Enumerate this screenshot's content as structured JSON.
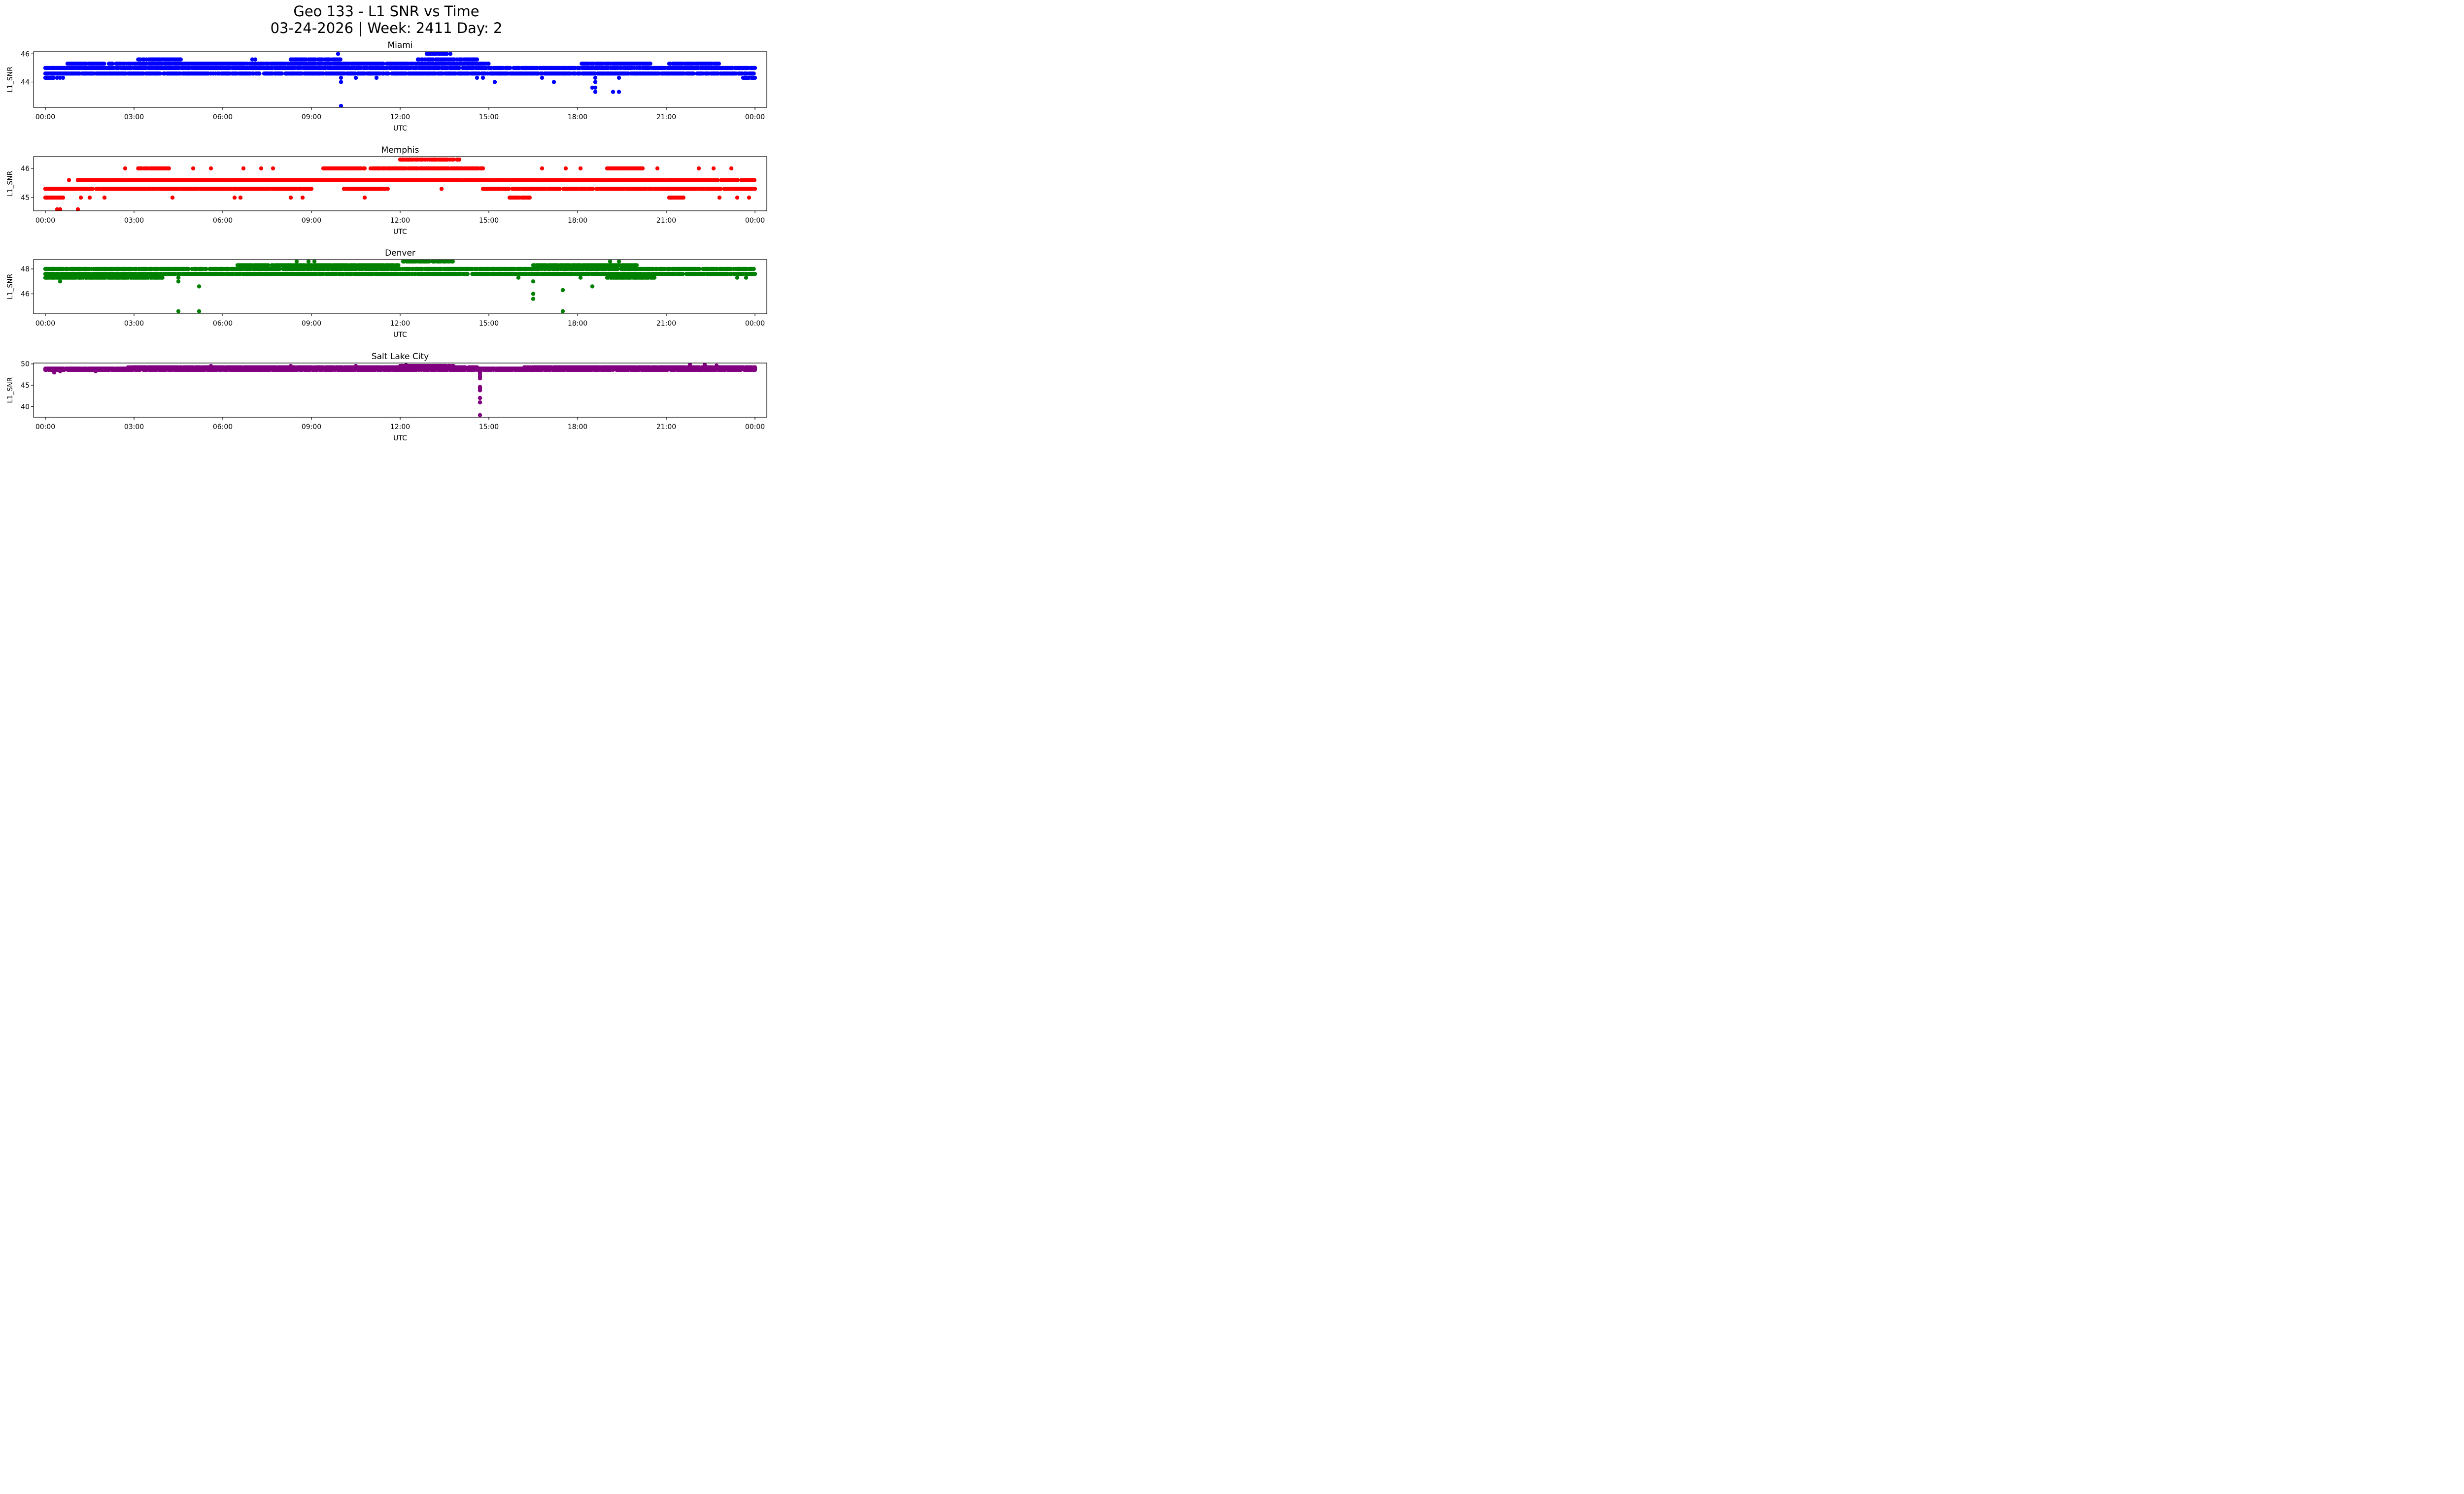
{
  "chart_data": {
    "type": "scatter",
    "title_line1": "Geo 133 - L1 SNR vs Time",
    "title_line2": "03-24-2026 | Week: 2411 Day: 2",
    "subplots": [
      {
        "title": "Miami",
        "color": "#0000ff",
        "xlabel": "UTC",
        "ylabel": "L1_SNR",
        "xlim": [
          -0.4,
          24.4
        ],
        "ylim": [
          42.2,
          46.15
        ],
        "yticks": [
          44,
          46
        ],
        "xticks": [
          0,
          3,
          6,
          9,
          12,
          15,
          18,
          21,
          24
        ],
        "xtick_labels": [
          "00:00",
          "03:00",
          "06:00",
          "09:00",
          "12:00",
          "15:00",
          "18:00",
          "21:00",
          "00:00"
        ],
        "bands": [
          {
            "y": 45.0,
            "from": 0.0,
            "to": 24.0
          },
          {
            "y": 44.6,
            "from": 0.0,
            "to": 24.0
          },
          {
            "y": 45.3,
            "from": 0.75,
            "to": 15.0
          },
          {
            "y": 45.3,
            "from": 18.1,
            "to": 20.5
          },
          {
            "y": 45.3,
            "from": 21.1,
            "to": 22.8
          },
          {
            "y": 45.6,
            "from": 3.1,
            "to": 4.6
          },
          {
            "y": 45.6,
            "from": 8.3,
            "to": 10.0
          },
          {
            "y": 45.6,
            "from": 12.6,
            "to": 14.6
          },
          {
            "y": 46.0,
            "from": 12.9,
            "to": 13.6
          },
          {
            "y": 44.3,
            "from": 0.0,
            "to": 0.3
          },
          {
            "y": 44.3,
            "from": 23.6,
            "to": 24.0
          }
        ],
        "outliers": [
          [
            9.9,
            46.0
          ],
          [
            13.7,
            46.0
          ],
          [
            10.0,
            44.3
          ],
          [
            10.0,
            44.0
          ],
          [
            10.0,
            42.3
          ],
          [
            10.5,
            44.3
          ],
          [
            11.2,
            44.3
          ],
          [
            14.6,
            44.3
          ],
          [
            14.8,
            44.3
          ],
          [
            15.2,
            44.0
          ],
          [
            16.8,
            44.3
          ],
          [
            17.2,
            44.0
          ],
          [
            18.5,
            43.6
          ],
          [
            18.6,
            43.6
          ],
          [
            18.6,
            44.3
          ],
          [
            18.6,
            44.0
          ],
          [
            18.6,
            43.3
          ],
          [
            19.2,
            43.3
          ],
          [
            19.4,
            43.3
          ],
          [
            19.4,
            44.3
          ],
          [
            7.0,
            45.6
          ],
          [
            7.1,
            45.6
          ],
          [
            0.4,
            44.3
          ],
          [
            0.5,
            44.3
          ],
          [
            0.6,
            44.3
          ]
        ]
      },
      {
        "title": "Memphis",
        "color": "#ff0000",
        "xlabel": "UTC",
        "ylabel": "L1_SNR",
        "xlim": [
          -0.4,
          24.4
        ],
        "ylim": [
          44.55,
          46.4
        ],
        "yticks": [
          45,
          46
        ],
        "xticks": [
          0,
          3,
          6,
          9,
          12,
          15,
          18,
          21,
          24
        ],
        "xtick_labels": [
          "00:00",
          "03:00",
          "06:00",
          "09:00",
          "12:00",
          "15:00",
          "18:00",
          "21:00",
          "00:00"
        ],
        "bands": [
          {
            "y": 45.3,
            "from": 0.0,
            "to": 9.0
          },
          {
            "y": 45.3,
            "from": 14.8,
            "to": 24.0
          },
          {
            "y": 45.6,
            "from": 1.1,
            "to": 24.0
          },
          {
            "y": 46.0,
            "from": 3.1,
            "to": 4.2
          },
          {
            "y": 46.0,
            "from": 9.4,
            "to": 10.8
          },
          {
            "y": 46.0,
            "from": 11.0,
            "to": 14.8
          },
          {
            "y": 46.3,
            "from": 12.0,
            "to": 14.0
          },
          {
            "y": 46.0,
            "from": 19.0,
            "to": 20.2
          },
          {
            "y": 45.0,
            "from": 0.0,
            "to": 0.6
          },
          {
            "y": 45.0,
            "from": 15.7,
            "to": 16.4
          },
          {
            "y": 45.0,
            "from": 21.1,
            "to": 21.6
          },
          {
            "y": 45.3,
            "from": 10.1,
            "to": 11.6
          }
        ],
        "outliers": [
          [
            0.4,
            44.6
          ],
          [
            0.5,
            44.6
          ],
          [
            1.1,
            44.6
          ],
          [
            0.8,
            45.6
          ],
          [
            2.7,
            46.0
          ],
          [
            4.3,
            45.0
          ],
          [
            6.4,
            45.0
          ],
          [
            6.6,
            45.0
          ],
          [
            8.3,
            45.0
          ],
          [
            8.7,
            45.0
          ],
          [
            10.8,
            45.0
          ],
          [
            13.4,
            45.3
          ],
          [
            1.2,
            45.0
          ],
          [
            1.5,
            45.0
          ],
          [
            2.0,
            45.0
          ],
          [
            5.0,
            46.0
          ],
          [
            5.6,
            46.0
          ],
          [
            6.7,
            46.0
          ],
          [
            7.3,
            46.0
          ],
          [
            7.7,
            46.0
          ],
          [
            16.8,
            46.0
          ],
          [
            17.6,
            46.0
          ],
          [
            18.1,
            46.0
          ],
          [
            20.7,
            46.0
          ],
          [
            22.1,
            46.0
          ],
          [
            22.6,
            46.0
          ],
          [
            23.2,
            46.0
          ],
          [
            22.8,
            45.0
          ],
          [
            23.4,
            45.0
          ],
          [
            23.8,
            45.0
          ]
        ]
      },
      {
        "title": "Denver",
        "color": "#008000",
        "xlabel": "UTC",
        "ylabel": "L1_SNR",
        "xlim": [
          -0.4,
          24.4
        ],
        "ylim": [
          44.4,
          48.75
        ],
        "yticks": [
          46,
          48
        ],
        "xticks": [
          0,
          3,
          6,
          9,
          12,
          15,
          18,
          21,
          24
        ],
        "xtick_labels": [
          "00:00",
          "03:00",
          "06:00",
          "09:00",
          "12:00",
          "15:00",
          "18:00",
          "21:00",
          "00:00"
        ],
        "bands": [
          {
            "y": 47.6,
            "from": 0.0,
            "to": 24.0
          },
          {
            "y": 48.0,
            "from": 0.0,
            "to": 24.0
          },
          {
            "y": 47.3,
            "from": 0.0,
            "to": 4.0
          },
          {
            "y": 48.3,
            "from": 6.5,
            "to": 12.0
          },
          {
            "y": 48.6,
            "from": 12.1,
            "to": 13.8
          },
          {
            "y": 48.3,
            "from": 16.5,
            "to": 19.2
          },
          {
            "y": 47.3,
            "from": 19.0,
            "to": 20.6
          },
          {
            "y": 48.3,
            "from": 19.0,
            "to": 20.0
          }
        ],
        "outliers": [
          [
            0.5,
            47.0
          ],
          [
            4.5,
            47.0
          ],
          [
            4.5,
            47.3
          ],
          [
            5.2,
            46.6
          ],
          [
            4.5,
            44.6
          ],
          [
            5.2,
            44.6
          ],
          [
            16.5,
            47.0
          ],
          [
            16.5,
            46.0
          ],
          [
            16.5,
            45.6
          ],
          [
            17.5,
            46.3
          ],
          [
            17.5,
            44.6
          ],
          [
            18.5,
            46.6
          ],
          [
            8.5,
            48.6
          ],
          [
            8.9,
            48.6
          ],
          [
            9.1,
            48.6
          ],
          [
            19.1,
            48.6
          ],
          [
            19.4,
            48.6
          ],
          [
            16.0,
            47.3
          ],
          [
            18.1,
            47.3
          ],
          [
            23.4,
            47.3
          ],
          [
            23.7,
            47.3
          ]
        ]
      },
      {
        "title": "Salt Lake City",
        "color": "#800080",
        "xlabel": "UTC",
        "ylabel": "L1_SNR",
        "xlim": [
          -0.4,
          24.4
        ],
        "ylim": [
          37.5,
          50.2
        ],
        "yticks": [
          40,
          45,
          50
        ],
        "xticks": [
          0,
          3,
          6,
          9,
          12,
          15,
          18,
          21,
          24
        ],
        "xtick_labels": [
          "00:00",
          "03:00",
          "06:00",
          "09:00",
          "12:00",
          "15:00",
          "18:00",
          "21:00",
          "00:00"
        ],
        "bands": [
          {
            "y": 48.6,
            "from": 0.0,
            "to": 24.0
          },
          {
            "y": 48.9,
            "from": 0.0,
            "to": 24.0
          },
          {
            "y": 49.2,
            "from": 2.8,
            "to": 14.6
          },
          {
            "y": 49.5,
            "from": 12.0,
            "to": 13.8
          },
          {
            "y": 49.2,
            "from": 16.2,
            "to": 24.0
          }
        ],
        "outliers": [
          [
            0.3,
            48.0
          ],
          [
            0.5,
            48.3
          ],
          [
            1.7,
            48.3
          ],
          [
            14.7,
            48.0
          ],
          [
            14.7,
            47.5
          ],
          [
            14.7,
            47.0
          ],
          [
            14.7,
            46.6
          ],
          [
            14.7,
            44.6
          ],
          [
            14.7,
            44.2
          ],
          [
            14.7,
            43.8
          ],
          [
            14.7,
            42.0
          ],
          [
            14.7,
            41.0
          ],
          [
            14.7,
            38.0
          ],
          [
            21.8,
            49.8
          ],
          [
            22.3,
            49.8
          ],
          [
            22.7,
            49.6
          ],
          [
            5.6,
            49.5
          ],
          [
            8.3,
            49.5
          ],
          [
            10.5,
            49.5
          ],
          [
            12.2,
            49.7
          ]
        ]
      }
    ]
  }
}
